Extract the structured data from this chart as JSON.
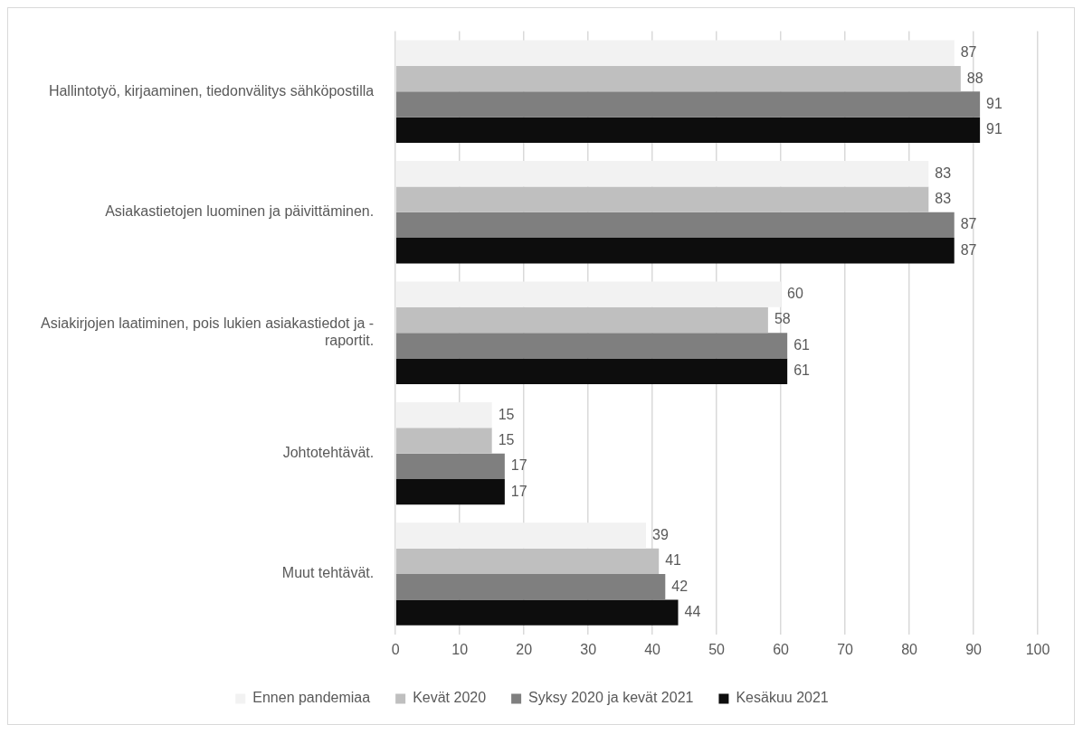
{
  "chart_data": {
    "type": "bar",
    "orientation": "horizontal",
    "categories": [
      "Hallintotyö, kirjaaminen, tiedonvälitys sähköpostilla",
      "Asiakastietojen luominen ja päivittäminen.",
      "Asiakirjojen laatiminen, pois lukien asiakastiedot ja - raportit.",
      "Johtotehtävät.",
      "Muut tehtävät."
    ],
    "series": [
      {
        "name": "Ennen pandemiaa",
        "color": "#f2f2f2",
        "values": [
          87,
          83,
          60,
          15,
          39
        ]
      },
      {
        "name": "Kevät 2020",
        "color": "#bfbfbf",
        "values": [
          88,
          83,
          58,
          15,
          41
        ]
      },
      {
        "name": "Syksy 2020 ja kevät 2021",
        "color": "#7f7f7f",
        "values": [
          91,
          87,
          61,
          17,
          42
        ]
      },
      {
        "name": "Kesäkuu 2021",
        "color": "#0d0d0d",
        "values": [
          91,
          87,
          61,
          17,
          44
        ]
      }
    ],
    "xlim": [
      0,
      100
    ],
    "xticks": [
      0,
      10,
      20,
      30,
      40,
      50,
      60,
      70,
      80,
      90,
      100
    ],
    "grid": "x",
    "legend": "bottom",
    "data_labels": true
  }
}
